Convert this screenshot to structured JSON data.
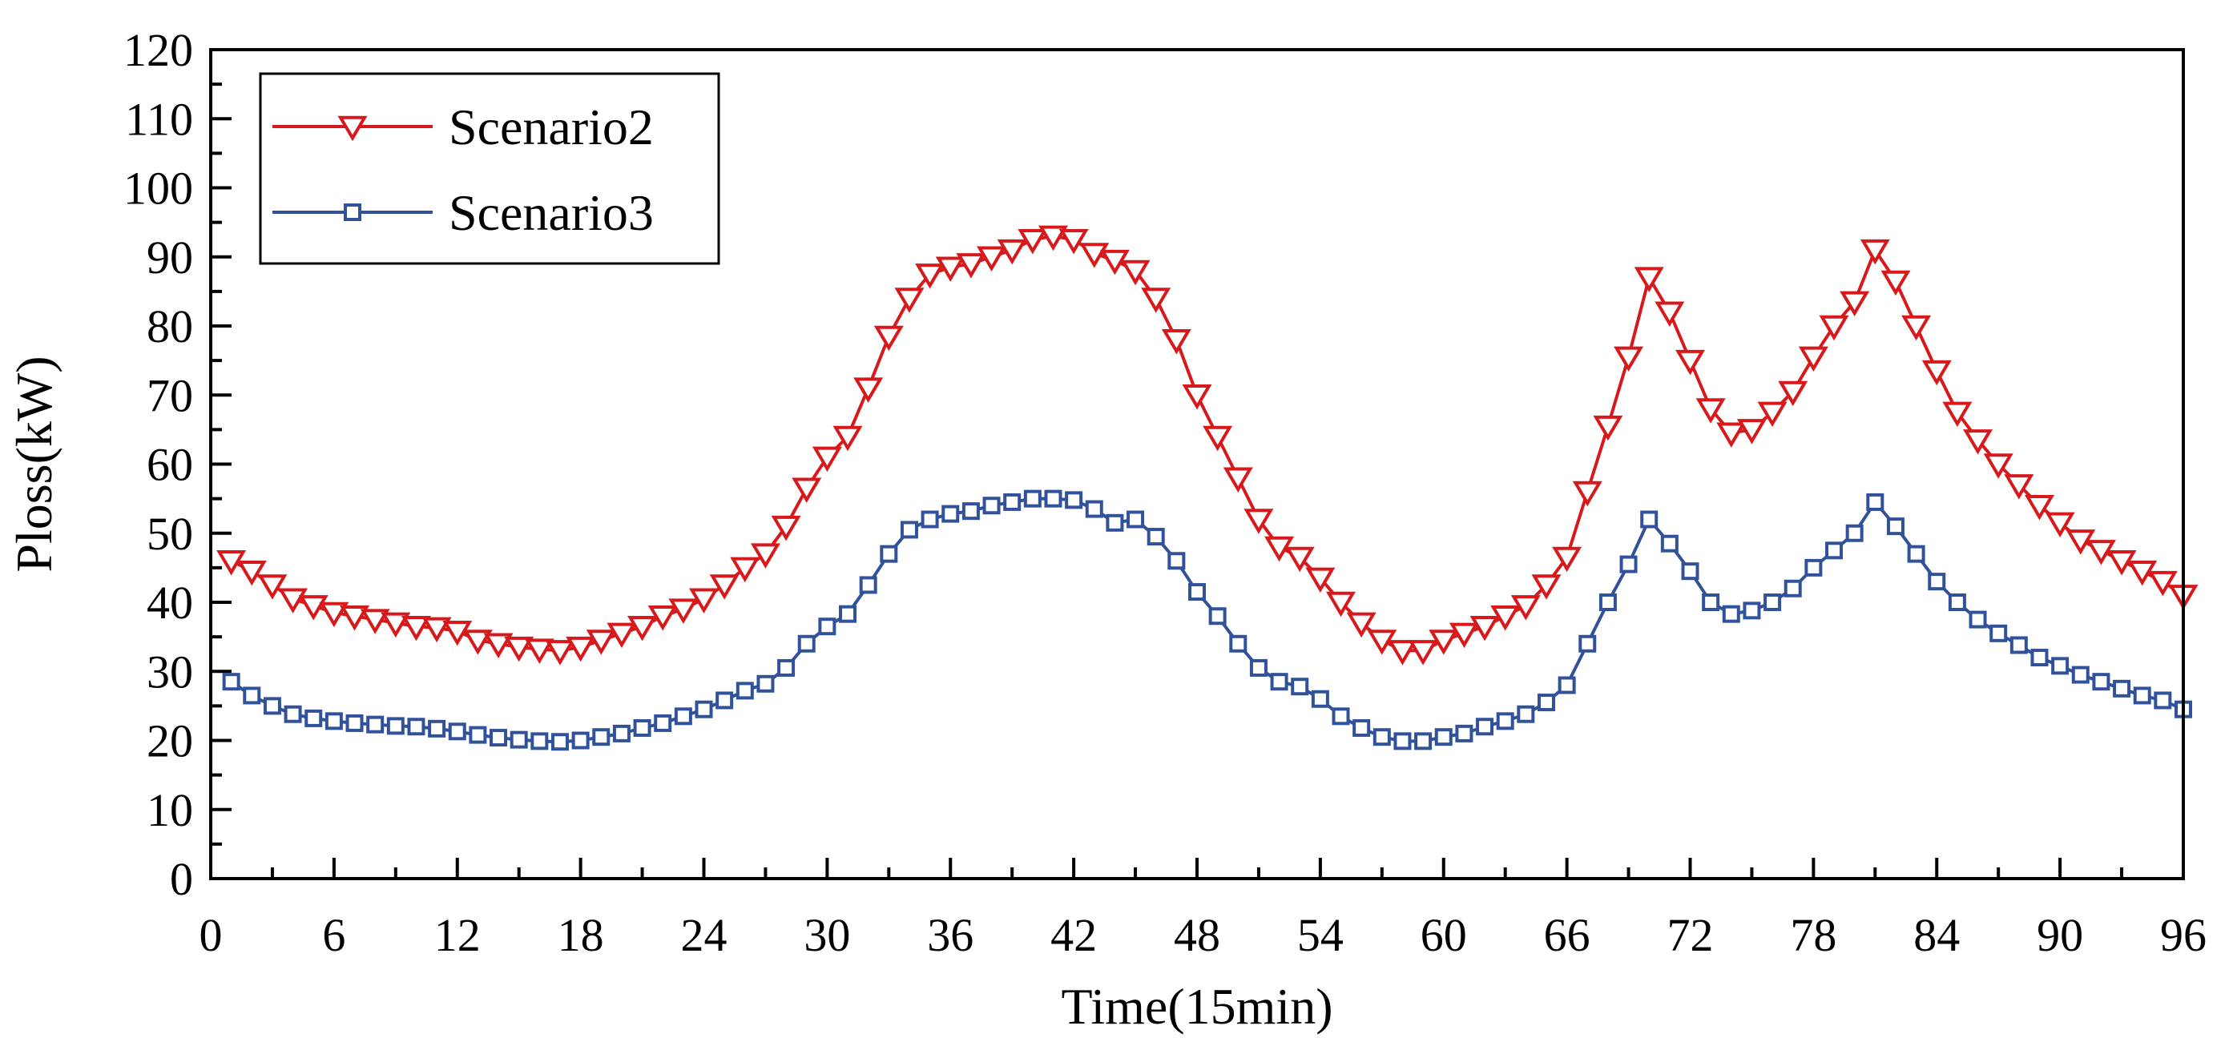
{
  "chart_data": {
    "type": "line",
    "title": "",
    "xlabel": "Time(15min)",
    "ylabel": "Ploss(kW)",
    "xlim": [
      0,
      96
    ],
    "ylim": [
      0,
      120
    ],
    "xticks": [
      0,
      6,
      12,
      18,
      24,
      30,
      36,
      42,
      48,
      54,
      60,
      66,
      72,
      78,
      84,
      90,
      96
    ],
    "yticks": [
      0,
      10,
      20,
      30,
      40,
      50,
      60,
      70,
      80,
      90,
      100,
      110,
      120
    ],
    "legend_position": "top-left",
    "grid": false,
    "x": [
      1,
      2,
      3,
      4,
      5,
      6,
      7,
      8,
      9,
      10,
      11,
      12,
      13,
      14,
      15,
      16,
      17,
      18,
      19,
      20,
      21,
      22,
      23,
      24,
      25,
      26,
      27,
      28,
      29,
      30,
      31,
      32,
      33,
      34,
      35,
      36,
      37,
      38,
      39,
      40,
      41,
      42,
      43,
      44,
      45,
      46,
      47,
      48,
      49,
      50,
      51,
      52,
      53,
      54,
      55,
      56,
      57,
      58,
      59,
      60,
      61,
      62,
      63,
      64,
      65,
      66,
      67,
      68,
      69,
      70,
      71,
      72,
      73,
      74,
      75,
      76,
      77,
      78,
      79,
      80,
      81,
      82,
      83,
      84,
      85,
      86,
      87,
      88,
      89,
      90,
      91,
      92,
      93,
      94,
      95,
      96
    ],
    "series": [
      {
        "name": "Scenario2",
        "color": "#d7191c",
        "marker": "triangle-down",
        "values": [
          46,
          44.5,
          42.5,
          40.5,
          39.5,
          38.5,
          38,
          37.5,
          37,
          36.5,
          36.3,
          35.8,
          34.5,
          34,
          33.5,
          33.2,
          33,
          33.5,
          34.5,
          35.5,
          36.5,
          38,
          39,
          40.5,
          42.5,
          45,
          47,
          51,
          56.5,
          61,
          64,
          71,
          78.5,
          84,
          87.5,
          88.5,
          89,
          90,
          91,
          92.5,
          93,
          92.5,
          90.5,
          89.5,
          88,
          84,
          78,
          70,
          64,
          58,
          52,
          48,
          46.5,
          43.5,
          40,
          37,
          34.5,
          33,
          33,
          34.5,
          35.5,
          36.5,
          38,
          39.5,
          42.5,
          46.5,
          56,
          65.5,
          75.5,
          87,
          82,
          75,
          68,
          64.5,
          65,
          67.5,
          70.5,
          75.5,
          80,
          83.5,
          91,
          86.5,
          80,
          73.5,
          67.5,
          63.5,
          60,
          57,
          54,
          51.5,
          49,
          47.5,
          46,
          44.5,
          43,
          41
        ]
      },
      {
        "name": "Scenario3",
        "color": "#31529b",
        "marker": "square",
        "values": [
          28.5,
          26.5,
          25,
          23.8,
          23.2,
          22.8,
          22.5,
          22.3,
          22.1,
          22,
          21.7,
          21.3,
          20.8,
          20.4,
          20.1,
          19.9,
          19.8,
          20,
          20.5,
          21,
          21.8,
          22.5,
          23.5,
          24.5,
          25.8,
          27.2,
          28.2,
          30.5,
          34,
          36.5,
          38.3,
          42.5,
          47,
          50.5,
          52,
          52.8,
          53.2,
          54,
          54.5,
          55,
          55,
          54.8,
          53.5,
          51.5,
          52,
          49.5,
          46,
          41.5,
          38,
          34,
          30.5,
          28.5,
          27.8,
          26,
          23.5,
          21.8,
          20.5,
          19.9,
          19.9,
          20.5,
          21,
          22,
          22.8,
          23.8,
          25.5,
          28,
          34,
          40,
          45.5,
          52,
          48.5,
          44.5,
          40,
          38.3,
          38.8,
          40,
          42,
          45,
          47.5,
          50,
          54.5,
          51,
          47,
          43,
          40,
          37.5,
          35.5,
          33.8,
          32,
          30.8,
          29.5,
          28.5,
          27.5,
          26.5,
          25.8,
          24.5
        ]
      }
    ]
  }
}
